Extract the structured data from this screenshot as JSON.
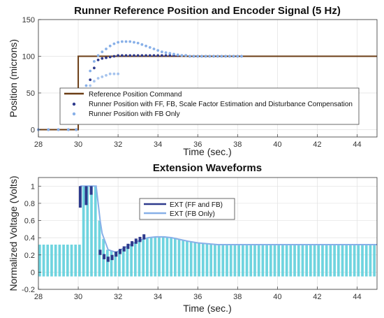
{
  "chart_data": [
    {
      "type": "line",
      "title": "Runner Reference Position and Encoder Signal (5 Hz)",
      "xlabel": "Time (sec.)",
      "ylabel": "Position (microns)",
      "xlim": [
        28,
        45
      ],
      "ylim": [
        -10,
        150
      ],
      "xticks": [
        "28",
        "30",
        "32",
        "34",
        "36",
        "38",
        "40",
        "42",
        "44"
      ],
      "yticks": [
        "0",
        "50",
        "100",
        "150"
      ],
      "grid": true,
      "legend_position": "lower-left",
      "colors": {
        "reference": "#6b3d16",
        "ff_fb": "#2e3a8c",
        "fb_only": "#88b0e8"
      },
      "series": [
        {
          "name": "Reference Position Command",
          "style": "line",
          "x": [
            28,
            30,
            30,
            45
          ],
          "y": [
            0,
            0,
            100,
            100
          ]
        },
        {
          "name": "Runner Position with FF, FB, Scale Factor Estimation and Disturbance Compensation",
          "style": "dots",
          "x": [
            28.0,
            28.5,
            29.0,
            29.5,
            29.9,
            30.4,
            30.6,
            30.8,
            31.0,
            31.2,
            31.4,
            31.6,
            31.8,
            32.0,
            32.2,
            32.4,
            32.6,
            32.8,
            33.0,
            33.2,
            33.4,
            33.6,
            33.8,
            34.0,
            34.2,
            34.4,
            34.6,
            34.8,
            35.0,
            35.2,
            35.4,
            35.6,
            35.8,
            36.0,
            36.2,
            36.4,
            36.6,
            36.8,
            37.0,
            37.2,
            37.4,
            37.6,
            37.8,
            38.0,
            38.2
          ],
          "y": [
            0,
            0,
            0,
            0,
            0,
            54,
            68,
            84,
            95,
            97,
            98,
            99,
            100,
            101,
            101,
            101,
            101,
            101,
            101,
            101,
            101,
            101,
            101,
            101,
            101,
            101,
            101,
            101,
            101,
            101,
            101,
            100,
            100,
            100,
            100,
            100,
            100,
            100,
            100,
            100,
            100,
            100,
            100,
            100,
            100
          ]
        },
        {
          "name": "Runner Position with FB Only",
          "style": "dots",
          "x": [
            28.0,
            28.5,
            29.0,
            29.5,
            29.9,
            30.4,
            30.6,
            30.8,
            31.0,
            31.2,
            31.4,
            31.6,
            31.8,
            32.0,
            32.2,
            32.4,
            32.6,
            32.8,
            33.0,
            33.2,
            33.4,
            33.6,
            33.8,
            34.0,
            34.2,
            34.4,
            34.6,
            34.8,
            35.0,
            35.2,
            35.4,
            35.6,
            35.8,
            36.0,
            36.2,
            36.4,
            36.6,
            36.8,
            37.0,
            37.2,
            37.4,
            37.6,
            37.8,
            38.0,
            38.2
          ],
          "y": [
            0,
            0,
            0,
            0,
            0,
            60,
            80,
            93,
            101,
            106,
            110,
            114,
            117,
            119,
            120,
            120,
            120,
            119,
            118,
            116,
            114,
            112,
            110,
            108,
            106,
            105,
            104,
            103,
            102,
            101,
            101,
            100,
            100,
            100,
            100,
            100,
            100,
            100,
            100,
            100,
            100,
            100,
            100,
            100,
            100
          ]
        },
        {
          "name": "",
          "style": "dots",
          "x": [
            30.2,
            30.4,
            30.6,
            30.8,
            31.0,
            31.2,
            31.4,
            31.6,
            31.8,
            32.0
          ],
          "y": [
            10,
            48,
            60,
            66,
            70,
            72,
            74,
            76,
            76,
            76
          ]
        }
      ]
    },
    {
      "type": "line",
      "title": "Extension Waveforms",
      "xlabel": "Time (sec.)",
      "ylabel": "Normalized Voltage (Volts)",
      "xlim": [
        28,
        45
      ],
      "ylim": [
        -0.2,
        1.1
      ],
      "xticks": [
        "28",
        "30",
        "32",
        "34",
        "36",
        "38",
        "40",
        "42",
        "44"
      ],
      "yticks": [
        "-0.2",
        "0",
        "0.2",
        "0.4",
        "0.6",
        "0.8",
        "1"
      ],
      "grid": true,
      "legend_position": "center",
      "colors": {
        "ff_fb": "#2e3a8c",
        "fb_only": "#88b0e8",
        "fill": "#5fcfdc"
      },
      "series": [
        {
          "name": "EXT (FF and FB)",
          "x": [
            30.1,
            30.4,
            30.65,
            31.1,
            31.3,
            31.5,
            31.7,
            31.9,
            32.1,
            32.3,
            32.5,
            32.7,
            32.9,
            33.1,
            33.3
          ],
          "y": [
            0.75,
            0.78,
            0.9,
            0.2,
            0.15,
            0.12,
            0.14,
            0.18,
            0.21,
            0.24,
            0.27,
            0.3,
            0.33,
            0.35,
            0.38
          ]
        },
        {
          "name": "EXT (FB Only)",
          "x": [
            30.1,
            30.5,
            30.9,
            31.1,
            31.2,
            31.5,
            31.9,
            32.3,
            32.7,
            33.1,
            33.5,
            33.9,
            34.3,
            34.7,
            35.1,
            35.5,
            36.0,
            36.5,
            37.0,
            45.0
          ],
          "y": [
            1.0,
            1.0,
            1.0,
            0.6,
            0.45,
            0.26,
            0.23,
            0.28,
            0.33,
            0.37,
            0.4,
            0.41,
            0.41,
            0.4,
            0.38,
            0.36,
            0.34,
            0.33,
            0.32,
            0.32
          ]
        },
        {
          "name": "",
          "x": [
            28,
            45
          ],
          "y": [
            0.32,
            0.32
          ]
        },
        {
          "name": "",
          "x": [
            28,
            45
          ],
          "y": [
            -0.05,
            -0.05
          ]
        }
      ]
    }
  ]
}
